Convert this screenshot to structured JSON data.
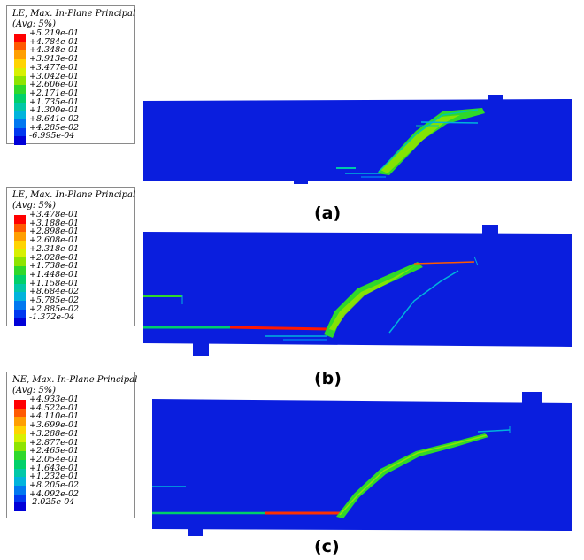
{
  "panels": [
    {
      "caption": "(a)",
      "legend": {
        "title": "LE, Max. In-Plane Principal",
        "subtitle": "(Avg: 5%)",
        "labels": [
          "+5.219e-01",
          "+4.784e-01",
          "+4.348e-01",
          "+3.913e-01",
          "+3.477e-01",
          "+3.042e-01",
          "+2.606e-01",
          "+2.171e-01",
          "+1.735e-01",
          "+1.300e-01",
          "+8.641e-02",
          "+4.285e-02",
          "-6.995e-04"
        ]
      }
    },
    {
      "caption": "(b)",
      "legend": {
        "title": "LE, Max. In-Plane Principal",
        "subtitle": "(Avg: 5%)",
        "labels": [
          "+3.478e-01",
          "+3.188e-01",
          "+2.898e-01",
          "+2.608e-01",
          "+2.318e-01",
          "+2.028e-01",
          "+1.738e-01",
          "+1.448e-01",
          "+1.158e-01",
          "+8.684e-02",
          "+5.785e-02",
          "+2.885e-02",
          "-1.372e-04"
        ]
      }
    },
    {
      "caption": "(c)",
      "legend": {
        "title": "NE, Max. In-Plane Principal",
        "subtitle": "(Avg: 5%)",
        "labels": [
          "+4.933e-01",
          "+4.522e-01",
          "+4.110e-01",
          "+3.699e-01",
          "+3.288e-01",
          "+2.877e-01",
          "+2.465e-01",
          "+2.054e-01",
          "+1.643e-01",
          "+1.232e-01",
          "+8.205e-02",
          "+4.092e-02",
          "-2.025e-04"
        ]
      }
    }
  ],
  "colors": {
    "contour_scale": [
      "#ff0000",
      "#ff5a00",
      "#ff9f00",
      "#ffd400",
      "#d8f000",
      "#8ee400",
      "#2fd82a",
      "#00d06a",
      "#00c8a8",
      "#00b4dc",
      "#0078f0",
      "#0038f0",
      "#0000d8"
    ],
    "beam_background": "#0a1ede"
  }
}
